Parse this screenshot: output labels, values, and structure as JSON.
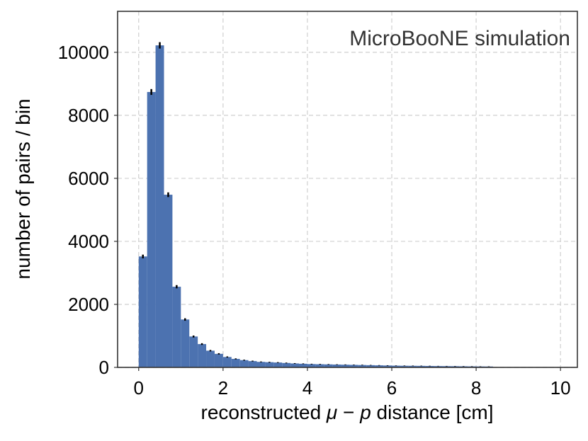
{
  "chart_data": {
    "type": "bar",
    "annotation": "MicroBooNE simulation",
    "xlabel": {
      "pre": "reconstructed ",
      "var1": "μ",
      "op": " − ",
      "var2": "p",
      "post": " distance [cm]"
    },
    "ylabel": "number of pairs / bin",
    "xlim": [
      -0.5,
      10.4
    ],
    "ylim": [
      0,
      11300
    ],
    "xticks": [
      0,
      2,
      4,
      6,
      8,
      10
    ],
    "xtick_labels": [
      "0",
      "2",
      "4",
      "6",
      "8",
      "10"
    ],
    "yticks": [
      0,
      2000,
      4000,
      6000,
      8000,
      10000
    ],
    "ytick_labels": [
      "0",
      "2000",
      "4000",
      "6000",
      "8000",
      "10000"
    ],
    "grid": true,
    "bin_width": 0.2,
    "bin_edges_start": 0,
    "values": [
      3520,
      8740,
      10220,
      5480,
      2560,
      1520,
      980,
      740,
      530,
      430,
      330,
      270,
      230,
      200,
      175,
      165,
      155,
      140,
      125,
      115,
      105,
      100,
      95,
      90,
      85,
      80,
      75,
      70,
      65,
      60,
      55,
      52,
      50,
      48,
      45,
      42,
      40,
      38,
      35,
      32,
      30,
      28
    ],
    "errors": [
      59,
      93,
      101,
      74,
      51,
      39,
      31,
      27,
      23,
      21,
      18,
      16,
      15,
      14,
      13,
      13,
      12,
      12,
      11,
      11,
      10,
      10,
      10,
      9,
      9,
      9,
      9,
      8,
      8,
      8,
      7,
      7,
      7,
      7,
      7,
      6,
      6,
      6,
      6,
      6,
      5,
      5
    ],
    "colors": {
      "bar": "#4c72b0",
      "error": "#000000",
      "grid": "#cfcfcf",
      "frame": "#333333"
    }
  }
}
